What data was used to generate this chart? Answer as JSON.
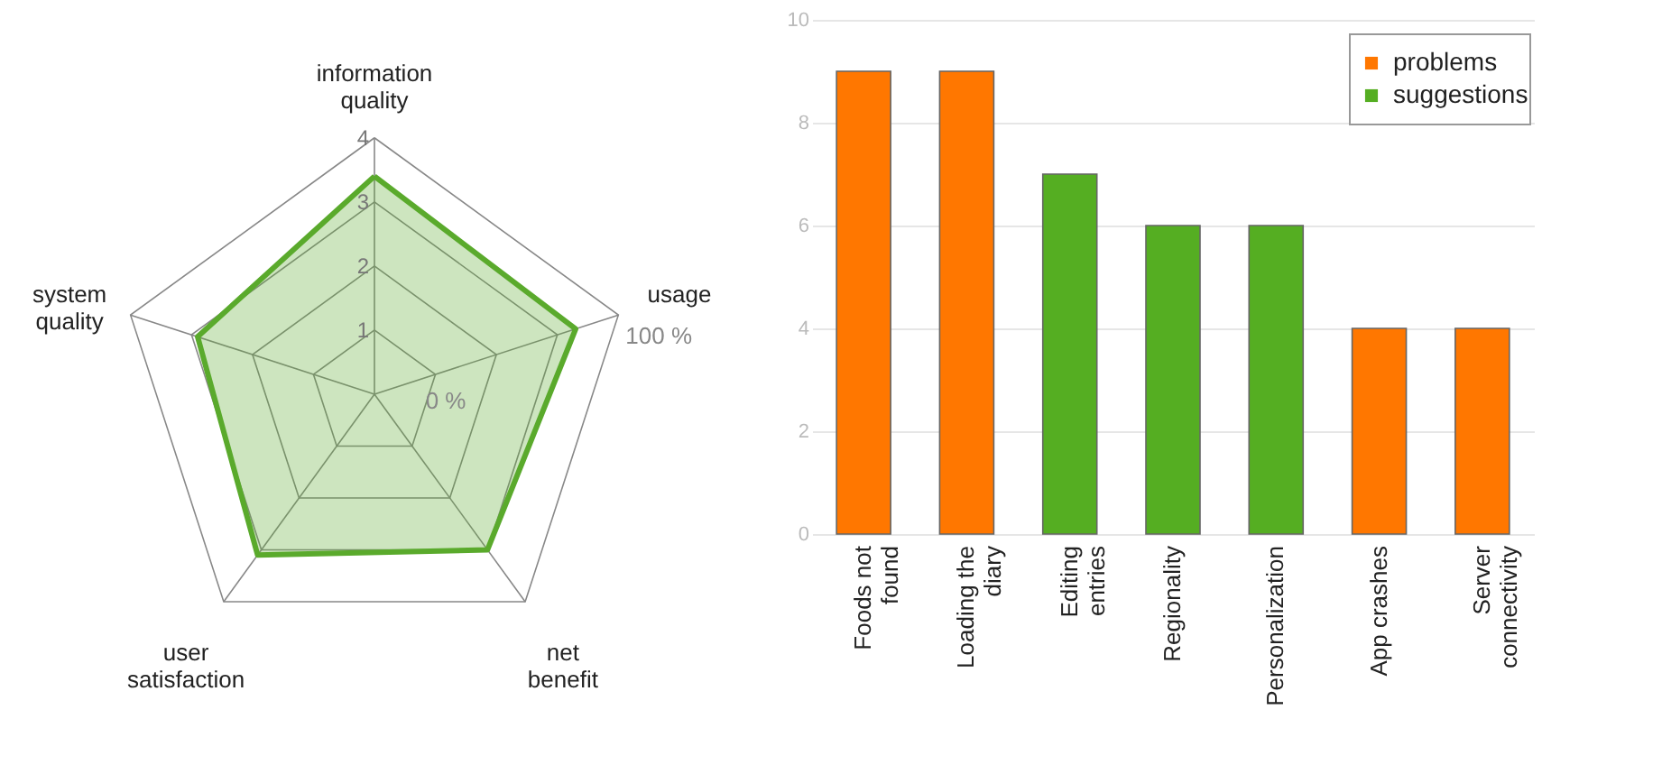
{
  "chart_data": [
    {
      "type": "radar",
      "categories": [
        "information\nquality",
        "usage",
        "net\nbenefit",
        "user\nsatisfaction",
        "system\nquality"
      ],
      "series": [
        {
          "color": "#5aaa2c",
          "values": [
            3.4,
            3.3,
            3.0,
            3.1,
            2.9
          ]
        }
      ],
      "ylim": [
        0,
        4
      ],
      "yticks": [
        1,
        2,
        3,
        4
      ],
      "grid": true,
      "annotations": [
        "0 %",
        "100 %"
      ]
    },
    {
      "type": "bar",
      "categories": [
        "Foods not\nfound",
        "Loading the\ndiary",
        "Editing\nentries",
        "Regionality",
        "Personalization",
        "App crashes",
        "Server\nconnectivity"
      ],
      "series": [
        {
          "name": "problems",
          "color": "#ff7700",
          "values": [
            9,
            9,
            null,
            null,
            null,
            4,
            4
          ]
        },
        {
          "name": "suggestions",
          "color": "#55ae22",
          "values": [
            null,
            null,
            7,
            6,
            6,
            null,
            null
          ]
        }
      ],
      "ylim": [
        0,
        10
      ],
      "yticks": [
        0,
        2,
        4,
        6,
        8,
        10
      ],
      "grid": "y",
      "legend": "top right"
    }
  ]
}
